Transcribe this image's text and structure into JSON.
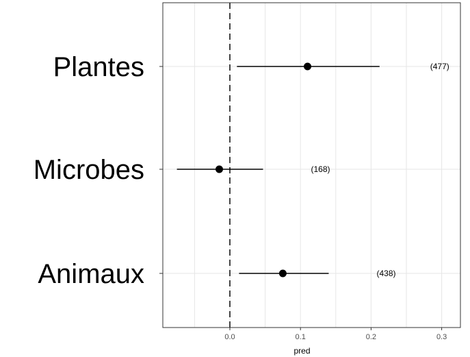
{
  "chart_data": {
    "type": "scatter",
    "subtype": "forest-plot",
    "xlabel": "pred",
    "ylabel": "",
    "xlim": [
      -0.1,
      0.32
    ],
    "x_ticks": [
      0.0,
      0.1,
      0.2,
      0.3
    ],
    "x_tick_labels": [
      "0.0",
      "0.1",
      "0.2",
      "0.3"
    ],
    "reference_line": {
      "x": 0.0,
      "style": "dashed",
      "color": "#444444"
    },
    "grid": true,
    "categories": [
      "Plantes",
      "Microbes",
      "Animaux"
    ],
    "series": [
      {
        "values": [
          0.11,
          -0.015,
          0.075
        ],
        "lower": [
          0.01,
          -0.075,
          0.013
        ],
        "upper": [
          0.212,
          0.047,
          0.14
        ],
        "counts": [
          "(477)",
          "(168)",
          "(438)"
        ]
      }
    ],
    "colors": {
      "points": "#000000",
      "grid": "#e6e6e6",
      "panel_border": "#333333"
    }
  }
}
